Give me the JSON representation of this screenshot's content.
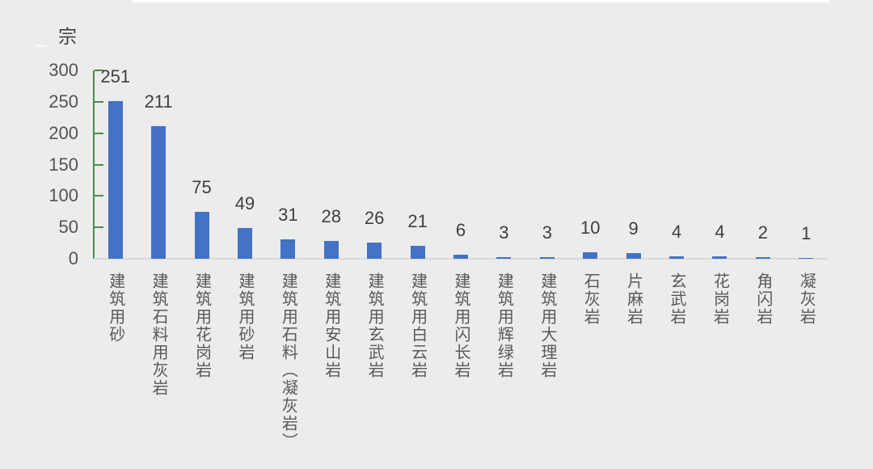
{
  "unit": {
    "label": "宗"
  },
  "colors": {
    "bar": "#4472c4",
    "axis": "#4b8a50",
    "baseline": "#d9d9d9",
    "background": "#ececec",
    "value_text": "#3f3f3f",
    "tick_text": "#545454",
    "category_text": "#595959"
  },
  "chart_data": {
    "type": "bar",
    "title": "",
    "xlabel": "",
    "ylabel": "宗",
    "ylim": [
      0,
      300
    ],
    "yticks": [
      0,
      50,
      100,
      150,
      200,
      250,
      300
    ],
    "grid": false,
    "legend": "none",
    "data_labels": "outside-end",
    "categories": [
      "建筑用砂",
      "建筑石料用灰岩",
      "建筑用花岗岩",
      "建筑用砂岩",
      "建筑用石料（凝灰岩）",
      "建筑用安山岩",
      "建筑用玄武岩",
      "建筑用白云岩",
      "建筑用闪长岩",
      "建筑用辉绿岩",
      "建筑用大理岩",
      "石灰岩",
      "片麻岩",
      "玄武岩",
      "花岗岩",
      "角闪岩",
      "凝灰岩"
    ],
    "values": [
      251,
      211,
      75,
      49,
      31,
      28,
      26,
      21,
      6,
      3,
      3,
      10,
      9,
      4,
      4,
      2,
      1
    ]
  }
}
